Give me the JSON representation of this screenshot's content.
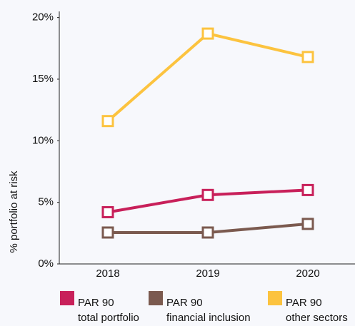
{
  "chart_data": {
    "type": "line",
    "y_label": "% portfolio at risk",
    "categories": [
      "2018",
      "2019",
      "2020"
    ],
    "series": [
      {
        "name": "PAR 90",
        "description": "total portfolio",
        "color": "#c8205a",
        "values": [
          4.2,
          5.6,
          6.0
        ]
      },
      {
        "name": "PAR 90",
        "description": "financial inclusion",
        "color": "#7b5a4f",
        "values": [
          2.55,
          2.55,
          3.25
        ]
      },
      {
        "name": "PAR 90",
        "description": "other sectors",
        "color": "#fcc33f",
        "values": [
          11.6,
          18.7,
          16.8
        ]
      }
    ],
    "ylim": [
      0,
      20.5
    ],
    "yticks": [
      {
        "value": 0,
        "label": "0%"
      },
      {
        "value": 5,
        "label": "5%"
      },
      {
        "value": 10,
        "label": "10%"
      },
      {
        "value": 15,
        "label": "15%"
      },
      {
        "value": 20,
        "label": "20%"
      }
    ],
    "grid": false,
    "legend": "bottom"
  }
}
